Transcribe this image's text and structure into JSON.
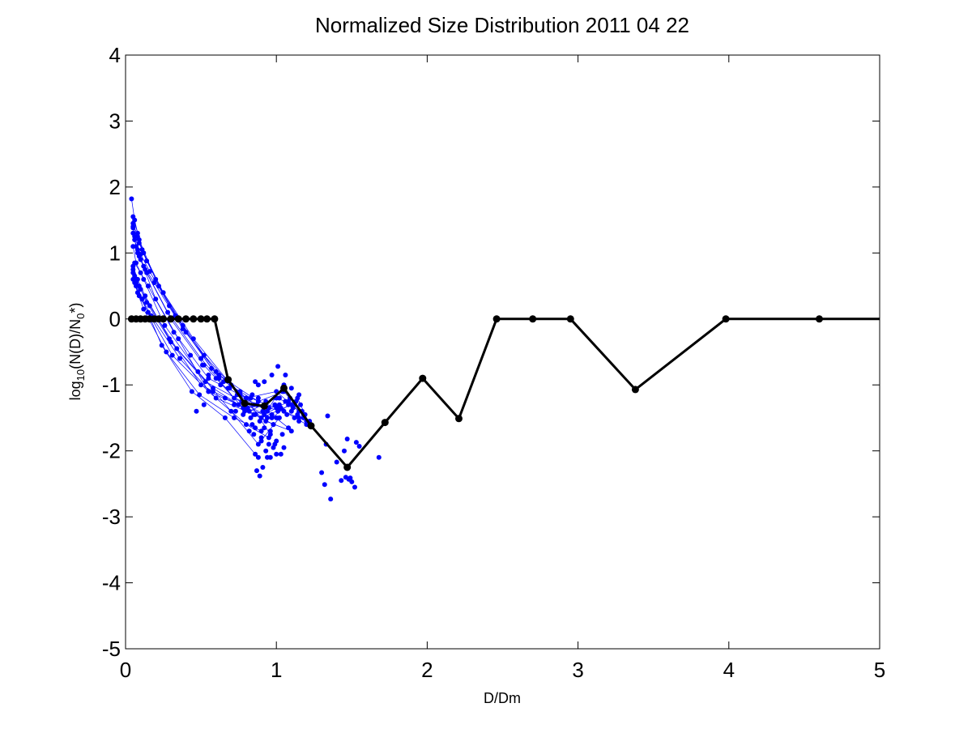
{
  "chart_data": {
    "type": "line",
    "title": "Normalized Size Distribution 2011 04 22",
    "xlabel": "D/Dm",
    "ylabel": {
      "main": "log",
      "sub1": "10",
      "mid": "(N(D)/N",
      "sub2": "0",
      "tail": "*)"
    },
    "xlim": [
      0,
      5
    ],
    "ylim": [
      -5,
      4
    ],
    "xticks": [
      0,
      1,
      2,
      3,
      4,
      5
    ],
    "yticks": [
      -5,
      -4,
      -3,
      -2,
      -1,
      0,
      1,
      2,
      3,
      4
    ],
    "xtick_labels": [
      "0",
      "1",
      "2",
      "3",
      "4",
      "5"
    ],
    "ytick_labels": [
      "-5",
      "-4",
      "-3",
      "-2",
      "-1",
      "0",
      "1",
      "2",
      "3",
      "4"
    ],
    "grid": false,
    "legend": "none",
    "colors": {
      "individual": "#0000ff",
      "mean": "#000000",
      "axes": "#000000"
    },
    "mean_series": {
      "name": "mean",
      "x": [
        0.04,
        0.07,
        0.1,
        0.13,
        0.16,
        0.19,
        0.22,
        0.25,
        0.3,
        0.35,
        0.4,
        0.45,
        0.5,
        0.54,
        0.59,
        0.68,
        0.79,
        0.92,
        1.05,
        1.23,
        1.47,
        1.72,
        1.97,
        2.21,
        2.46,
        2.7,
        2.95,
        3.38,
        3.98,
        4.6,
        5.0
      ],
      "y": [
        0,
        0,
        0,
        0,
        0,
        0,
        0,
        0,
        0,
        0,
        0,
        0,
        0,
        0,
        0,
        -0.92,
        -1.28,
        -1.32,
        -1.05,
        -1.62,
        -2.25,
        -1.57,
        -0.9,
        -1.51,
        0,
        0,
        0,
        -1.07,
        0,
        0,
        0
      ]
    },
    "individual_series": [
      {
        "x": [
          0.04,
          0.06,
          0.09,
          0.2,
          0.38,
          0.6,
          0.85,
          1.05,
          1.2
        ],
        "y": [
          1.82,
          1.5,
          1.2,
          0.6,
          -0.1,
          -0.8,
          -1.3,
          -1.4,
          -1.6
        ]
      },
      {
        "x": [
          0.05,
          0.08,
          0.12,
          0.25,
          0.45,
          0.7,
          0.9,
          1.1
        ],
        "y": [
          1.55,
          1.3,
          1.0,
          0.4,
          -0.3,
          -1.0,
          -1.5,
          -1.3
        ]
      },
      {
        "x": [
          0.05,
          0.08,
          0.11,
          0.22,
          0.4,
          0.62,
          0.83,
          1.0,
          1.15
        ],
        "y": [
          1.45,
          1.25,
          1.05,
          0.5,
          -0.2,
          -0.9,
          -1.2,
          -1.35,
          -1.5
        ]
      },
      {
        "x": [
          0.05,
          0.07,
          0.1,
          0.2,
          0.35,
          0.55,
          0.8,
          0.95
        ],
        "y": [
          1.38,
          1.1,
          0.9,
          0.3,
          -0.3,
          -1.1,
          -1.6,
          -1.8
        ]
      },
      {
        "x": [
          0.05,
          0.08,
          0.13,
          0.28,
          0.5,
          0.72,
          0.92,
          1.08,
          1.22
        ],
        "y": [
          1.3,
          1.0,
          0.75,
          0.1,
          -0.6,
          -1.2,
          -1.45,
          -1.25,
          -1.55
        ]
      },
      {
        "x": [
          0.06,
          0.09,
          0.14,
          0.3,
          0.52,
          0.78,
          0.98
        ],
        "y": [
          1.2,
          0.95,
          0.7,
          0.0,
          -0.7,
          -1.35,
          -1.6
        ]
      },
      {
        "x": [
          0.05,
          0.07,
          0.12,
          0.26,
          0.48,
          0.7,
          0.88,
          1.02
        ],
        "y": [
          1.1,
          0.85,
          0.6,
          -0.1,
          -0.8,
          -1.4,
          -1.9,
          -1.5
        ]
      },
      {
        "x": [
          0.06,
          0.1,
          0.15,
          0.32,
          0.55,
          0.8,
          1.0,
          1.15
        ],
        "y": [
          0.85,
          0.7,
          0.5,
          -0.2,
          -0.9,
          -1.2,
          -1.1,
          -1.4
        ]
      },
      {
        "x": [
          0.05,
          0.08,
          0.13,
          0.29,
          0.5,
          0.75,
          0.93,
          1.1
        ],
        "y": [
          0.8,
          0.6,
          0.35,
          -0.3,
          -1.0,
          -1.3,
          -1.55,
          -1.7
        ]
      },
      {
        "x": [
          0.05,
          0.07,
          0.11,
          0.24,
          0.44,
          0.66,
          0.86
        ],
        "y": [
          0.75,
          0.55,
          0.3,
          -0.4,
          -1.1,
          -1.5,
          -2.05
        ]
      },
      {
        "x": [
          0.05,
          0.09,
          0.14,
          0.3,
          0.53,
          0.77,
          0.95,
          1.05
        ],
        "y": [
          0.7,
          0.5,
          0.25,
          -0.35,
          -0.95,
          -1.25,
          -1.35,
          -1.0
        ]
      },
      {
        "x": [
          0.06,
          0.1,
          0.16,
          0.34,
          0.58,
          0.82,
          1.0,
          1.12
        ],
        "y": [
          0.65,
          0.45,
          0.2,
          -0.45,
          -1.05,
          -1.4,
          -1.2,
          -1.3
        ]
      },
      {
        "x": [
          0.05,
          0.08,
          0.12,
          0.27,
          0.49,
          0.72,
          0.9
        ],
        "y": [
          0.6,
          0.4,
          0.15,
          -0.5,
          -1.15,
          -1.5,
          -1.7
        ]
      },
      {
        "x": [
          0.06,
          0.09,
          0.15,
          0.31,
          0.55,
          0.8,
          0.97,
          1.14,
          1.22
        ],
        "y": [
          0.55,
          0.35,
          0.1,
          -0.55,
          -1.1,
          -1.35,
          -1.5,
          -1.2,
          -1.6
        ]
      },
      {
        "x": [
          0.07,
          0.11,
          0.17,
          0.36,
          0.6,
          0.85,
          1.02
        ],
        "y": [
          0.5,
          0.3,
          0.05,
          -0.6,
          -1.2,
          -1.45,
          -1.3
        ]
      },
      {
        "x": [
          0.08,
          0.12,
          0.19,
          0.38,
          0.62,
          0.88,
          1.05,
          1.18
        ],
        "y": [
          1.05,
          0.8,
          0.55,
          -0.15,
          -0.85,
          -1.25,
          -1.1,
          -1.45
        ]
      },
      {
        "x": [
          0.06,
          0.1,
          0.16,
          0.33,
          0.57,
          0.8,
          0.96
        ],
        "y": [
          1.25,
          0.98,
          0.72,
          0.05,
          -0.75,
          -1.2,
          -1.75
        ]
      },
      {
        "x": [
          0.05,
          0.09,
          0.14,
          0.29,
          0.52,
          0.76,
          0.94,
          1.08
        ],
        "y": [
          1.4,
          1.15,
          0.88,
          0.2,
          -0.55,
          -1.15,
          -1.4,
          -1.65
        ]
      }
    ],
    "scatter_points": {
      "x": [
        0.47,
        0.52,
        0.58,
        0.63,
        0.66,
        0.69,
        0.72,
        0.74,
        0.77,
        0.79,
        0.81,
        0.83,
        0.84,
        0.86,
        0.87,
        0.88,
        0.89,
        0.91,
        0.92,
        0.93,
        0.94,
        0.95,
        0.96,
        0.97,
        0.98,
        0.99,
        1.0,
        1.01,
        1.02,
        1.03,
        1.04,
        1.06,
        1.07,
        1.08,
        1.09,
        1.1,
        1.11,
        1.12,
        1.13,
        1.14,
        1.15,
        1.16,
        1.17,
        1.18,
        1.19,
        1.2,
        1.21,
        0.85,
        0.9,
        0.95,
        1.0,
        0.88,
        0.93,
        0.98,
        1.03,
        0.82,
        0.86,
        0.9,
        0.96,
        1.0,
        1.05,
        0.73,
        0.78,
        0.84,
        0.6,
        0.55,
        0.51,
        0.5,
        0.43,
        0.65,
        0.68,
        0.76,
        0.8,
        0.92,
        0.97,
        1.01,
        1.06,
        1.1,
        1.15,
        0.87,
        0.94,
        0.99,
        1.04,
        0.89,
        0.91,
        1.3,
        1.32,
        1.34,
        1.36,
        1.4,
        1.43,
        1.46,
        1.48,
        1.5,
        1.52,
        1.47,
        1.45,
        1.53,
        1.55,
        1.49,
        1.68,
        1.33,
        0.86,
        0.88
      ],
      "y": [
        -1.4,
        -1.3,
        -1.1,
        -1.0,
        -1.2,
        -1.05,
        -1.3,
        -1.15,
        -1.25,
        -1.4,
        -1.35,
        -1.5,
        -1.6,
        -1.45,
        -1.3,
        -1.2,
        -1.55,
        -1.4,
        -1.65,
        -1.25,
        -1.5,
        -1.35,
        -1.7,
        -1.45,
        -1.6,
        -1.3,
        -1.5,
        -1.4,
        -1.2,
        -1.35,
        -1.1,
        -1.25,
        -1.45,
        -1.3,
        -1.2,
        -1.4,
        -1.35,
        -1.5,
        -1.25,
        -1.45,
        -1.55,
        -1.3,
        -1.4,
        -1.5,
        -1.45,
        -1.55,
        -1.6,
        -1.75,
        -1.8,
        -1.9,
        -1.85,
        -2.1,
        -2.0,
        -1.95,
        -2.05,
        -1.7,
        -1.65,
        -1.85,
        -2.1,
        -2.05,
        -1.95,
        -1.4,
        -1.45,
        -1.15,
        -0.9,
        -0.85,
        -0.7,
        -0.6,
        -0.55,
        -0.95,
        -1.05,
        -1.1,
        -1.2,
        -0.95,
        -0.85,
        -0.72,
        -0.85,
        -1.05,
        -1.15,
        -2.3,
        -2.1,
        -1.9,
        -1.75,
        -2.38,
        -2.25,
        -2.33,
        -2.51,
        -1.47,
        -2.73,
        -2.17,
        -2.45,
        -2.4,
        -2.43,
        -2.47,
        -2.55,
        -1.82,
        -2.0,
        -1.87,
        -1.93,
        -2.41,
        -2.1,
        -1.9,
        -0.95,
        -1.0
      ]
    }
  }
}
